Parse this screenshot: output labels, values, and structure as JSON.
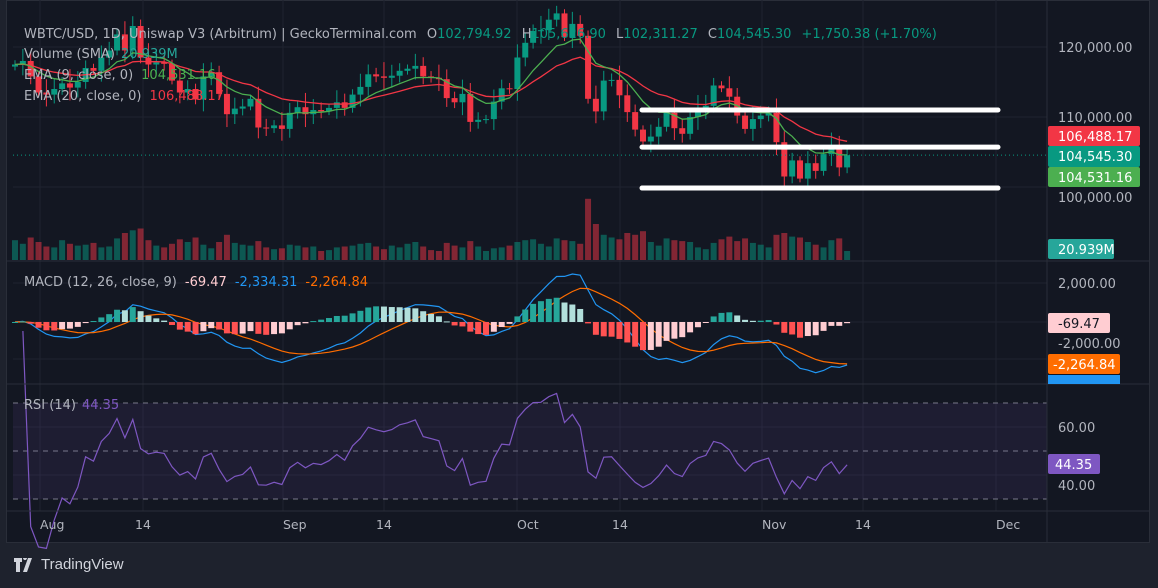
{
  "header": {
    "symbol": "WBTC/USD, 1D, Uniswap V3 (Arbitrum) | GeckoTerminal.com",
    "open_label": "O",
    "open": "102,794.92",
    "high_label": "H",
    "high": "105,626.90",
    "low_label": "L",
    "low": "102,311.27",
    "close_label": "C",
    "close": "104,545.30",
    "change": "+1,750.38 (+1.70%)"
  },
  "indicators": {
    "volume": {
      "label": "Volume (SMA)",
      "value": "20.939M"
    },
    "ema9": {
      "label": "EMA (9, close, 0)",
      "value": "104,531.16"
    },
    "ema20": {
      "label": "EMA (20, close, 0)",
      "value": "106,488.17"
    },
    "macd": {
      "label": "MACD (12, 26, close, 9)",
      "histogram": "-69.47",
      "macd": "-2,334.31",
      "signal": "-2,264.84"
    },
    "rsi": {
      "label": "RSI (14)",
      "value": "44.35"
    }
  },
  "price_axis": [
    "120,000.00",
    "110,000.00",
    "100,000.00"
  ],
  "macd_axis": [
    "2,000.00",
    "-2,000.00"
  ],
  "rsi_axis": [
    "60.00",
    "40.00"
  ],
  "price_tags": {
    "ema20": "106,488.17",
    "last": "104,545.30",
    "ema9": "104,531.16",
    "volume": "20.939M",
    "macd_hist": "-69.47",
    "macd_signal": "-2,264.84",
    "macd_line": "-2,334.31",
    "rsi": "44.35"
  },
  "time_axis": [
    "Aug",
    "14",
    "Sep",
    "14",
    "Oct",
    "14",
    "Nov",
    "14",
    "Dec"
  ],
  "footer": {
    "brand": "TradingView"
  },
  "colors": {
    "up": "#089981",
    "down": "#f23645",
    "ema9": "#4caf50",
    "ema20": "#f23645",
    "macd": "#2196f3",
    "signal": "#ff6d00",
    "rsi": "#7e57c2",
    "background": "#131722"
  },
  "chart_data": {
    "type": "candlestick",
    "first_date": "Jul 29",
    "last_date": "Nov 12",
    "closes": [
      117.5,
      118.0,
      115.8,
      113.5,
      113.2,
      114.0,
      114.8,
      114.2,
      115.0,
      117.0,
      116.6,
      118.5,
      119.5,
      121.8,
      119.5,
      123.0,
      118.5,
      117.5,
      117.8,
      117.6,
      115.2,
      113.5,
      114.0,
      112.5,
      115.8,
      116.4,
      113.3,
      110.4,
      111.2,
      111.5,
      112.6,
      108.5,
      108.4,
      108.8,
      108.3,
      110.6,
      111.4,
      110.4,
      111.0,
      110.8,
      111.3,
      112.1,
      111.3,
      113.2,
      114.3,
      116.1,
      115.8,
      115.6,
      115.9,
      116.6,
      116.9,
      117.3,
      115.8,
      115.6,
      115.4,
      112.7,
      112.1,
      113.3,
      109.3,
      109.6,
      109.7,
      112.2,
      114.1,
      114.0,
      118.5,
      120.6,
      122.3,
      122.4,
      123.9,
      124.8,
      121.4,
      123.3,
      121.6,
      112.6,
      110.8,
      115.2,
      115.3,
      113.1,
      110.7,
      108.2,
      106.5,
      107.2,
      108.6,
      110.6,
      108.4,
      107.6,
      110.0,
      111.1,
      111.6,
      114.5,
      114.1,
      112.9,
      110.2,
      108.3,
      109.7,
      110.2,
      110.6,
      106.4,
      101.5,
      103.8,
      101.2,
      103.4,
      102.3,
      104.7,
      105.9,
      102.8,
      104.545
    ],
    "close_unit": "thousand USD",
    "volumes_m": [
      22,
      18,
      25,
      20,
      15,
      14,
      22,
      18,
      16,
      17,
      19,
      14,
      15,
      24,
      30,
      33,
      35,
      22,
      16,
      14,
      18,
      23,
      20,
      25,
      17,
      13,
      20,
      28,
      19,
      17,
      16,
      21,
      14,
      12,
      13,
      17,
      16,
      14,
      15,
      10,
      11,
      14,
      15,
      16,
      18,
      19,
      15,
      12,
      16,
      14,
      18,
      20,
      15,
      11,
      10,
      19,
      16,
      14,
      21,
      15,
      10,
      13,
      14,
      16,
      20,
      22,
      23,
      18,
      15,
      24,
      22,
      21,
      18,
      68,
      40,
      28,
      25,
      23,
      30,
      28,
      32,
      20,
      16,
      24,
      22,
      21,
      20,
      14,
      12,
      19,
      23,
      26,
      21,
      24,
      19,
      17,
      14,
      28,
      30,
      26,
      25,
      20,
      17,
      14,
      22,
      24,
      10
    ],
    "horizontal_lines": [
      111000,
      105700,
      99850
    ],
    "price_ylim": [
      89600,
      126700
    ],
    "macd_params": [
      12,
      26,
      9
    ],
    "rsi_period": 14,
    "rsi_levels": [
      70,
      50,
      30
    ],
    "grid": true
  }
}
